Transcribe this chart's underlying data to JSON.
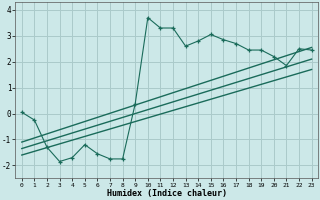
{
  "xlabel": "Humidex (Indice chaleur)",
  "ylabel": "",
  "bg_color": "#cce8e8",
  "grid_color": "#aacaca",
  "line_color": "#1a6b5a",
  "xlim": [
    -0.5,
    23.5
  ],
  "ylim": [
    -2.5,
    4.3
  ],
  "x_ticks": [
    0,
    1,
    2,
    3,
    4,
    5,
    6,
    7,
    8,
    9,
    10,
    11,
    12,
    13,
    14,
    15,
    16,
    17,
    18,
    19,
    20,
    21,
    22,
    23
  ],
  "y_ticks": [
    -2,
    -1,
    0,
    1,
    2,
    3,
    4
  ],
  "scatter_x": [
    0,
    1,
    2,
    3,
    4,
    5,
    6,
    7,
    8,
    9,
    10,
    11,
    12,
    13,
    14,
    15,
    16,
    17,
    18,
    19,
    20,
    21,
    22,
    23
  ],
  "scatter_y": [
    0.05,
    -0.25,
    -1.3,
    -1.85,
    -1.7,
    -1.2,
    -1.55,
    -1.75,
    -1.75,
    0.38,
    3.7,
    3.3,
    3.3,
    2.6,
    2.8,
    3.05,
    2.85,
    2.7,
    2.45,
    2.45,
    2.2,
    1.85,
    2.5,
    2.45
  ],
  "line1_x": [
    0,
    23
  ],
  "line1_y": [
    -1.1,
    2.55
  ],
  "line2_x": [
    0,
    23
  ],
  "line2_y": [
    -1.35,
    2.1
  ],
  "line3_x": [
    0,
    23
  ],
  "line3_y": [
    -1.6,
    1.7
  ]
}
